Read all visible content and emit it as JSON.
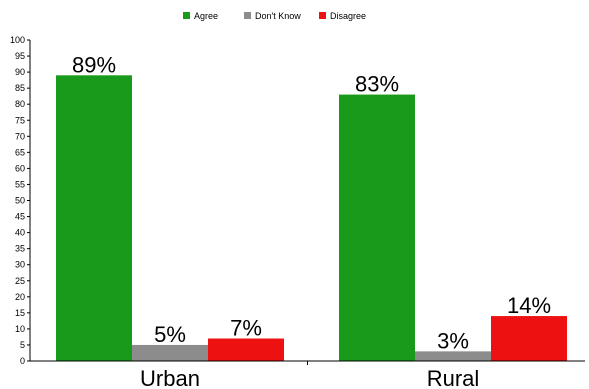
{
  "chart_data": {
    "type": "bar",
    "categories": [
      "Urban",
      "Rural"
    ],
    "series": [
      {
        "name": "Agree",
        "color": "#1a9a1a",
        "values": [
          89,
          83
        ],
        "labels": [
          "89%",
          "83%"
        ]
      },
      {
        "name": "Don't Know",
        "color": "#8c8c8c",
        "values": [
          5,
          3
        ],
        "labels": [
          "5%",
          "3%"
        ]
      },
      {
        "name": "Disagree",
        "color": "#ee1111",
        "values": [
          7,
          14
        ],
        "labels": [
          "7%",
          "14%"
        ]
      }
    ],
    "ylim": [
      0,
      100
    ],
    "yticks": [
      0,
      5,
      10,
      15,
      20,
      25,
      30,
      35,
      40,
      45,
      50,
      55,
      60,
      65,
      70,
      75,
      80,
      85,
      90,
      95,
      100
    ],
    "grid": false,
    "legend_position": "top-center"
  }
}
